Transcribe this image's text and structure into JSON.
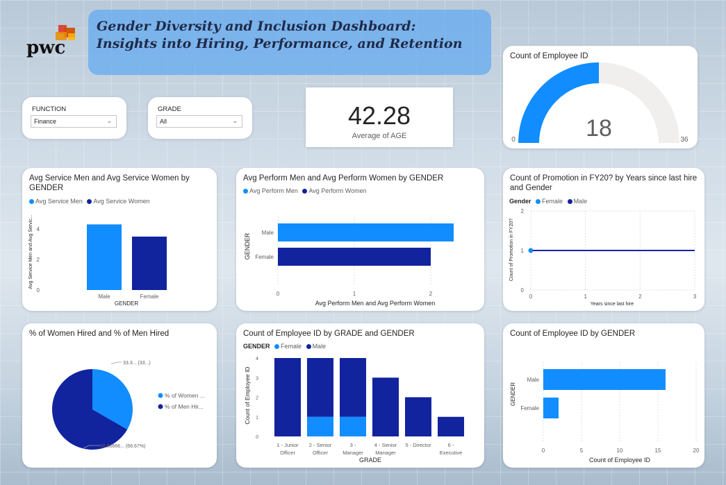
{
  "header": {
    "logo_text": "pwc",
    "title": "Gender Diversity and Inclusion Dashboard: Insights into Hiring, Performance, and Retention"
  },
  "filters": {
    "function": {
      "label": "FUNCTION",
      "value": "Finance"
    },
    "grade": {
      "label": "GRADE",
      "value": "All"
    }
  },
  "kpi": {
    "value": "42.28",
    "label": "Average of AGE"
  },
  "colors": {
    "light": "#118DFF",
    "dark": "#12239E",
    "gauge_bg": "#F0EFED"
  },
  "chart_data": [
    {
      "id": "gauge",
      "type": "gauge",
      "title": "Count of Employee ID",
      "value": 18,
      "min": 0,
      "max": 36
    },
    {
      "id": "avg_service",
      "type": "bar",
      "title": "Avg Service Men and Avg Service Women by GENDER",
      "legend": [
        "Avg Service Men",
        "Avg Service Women"
      ],
      "categories": [
        "Male",
        "Female"
      ],
      "values": [
        4.3,
        3.5
      ],
      "xlabel": "GENDER",
      "ylabel": "Avg Service Men and Avg Servic...",
      "yticks": [
        "0",
        "2",
        "4"
      ],
      "ylim": [
        0,
        5
      ]
    },
    {
      "id": "avg_perform",
      "type": "bar",
      "title": "Avg Perform Men and Avg Perform Women by GENDER",
      "legend": [
        "Avg Perform Men",
        "Avg Perform Women"
      ],
      "categories": [
        "Male",
        "Female"
      ],
      "values": [
        2.3,
        2.0
      ],
      "xlabel": "Avg Perform Men and Avg Perform Women",
      "ylabel": "GENDER",
      "xticks": [
        "0",
        "1",
        "2"
      ],
      "xlim": [
        0,
        2.4
      ]
    },
    {
      "id": "promotion",
      "type": "line",
      "title": "Count of Promotion in FY20? by Years since last hire and Gender",
      "legend_title": "Gender",
      "legend": [
        "Female",
        "Male"
      ],
      "series": [
        {
          "name": "Female",
          "x": [
            0
          ],
          "y": [
            1
          ]
        },
        {
          "name": "Male",
          "x": [
            0,
            3
          ],
          "y": [
            1,
            1
          ]
        }
      ],
      "xlabel": "Years since last hire",
      "ylabel": "Count of Promotion in FY20?",
      "xticks": [
        "0",
        "1",
        "2",
        "3"
      ],
      "yticks": [
        "0",
        "1",
        "2"
      ],
      "xlim": [
        0,
        3
      ],
      "ylim": [
        0,
        2
      ]
    },
    {
      "id": "hired_pie",
      "type": "pie",
      "title": "% of Women Hired and % of Men Hired",
      "slices": [
        {
          "name": "% of Women ...",
          "value": 33.33,
          "label": "33.3... (33...)"
        },
        {
          "name": "% of Men Hir...",
          "value": 66.67,
          "label": "66.66666... (66.67%)"
        }
      ]
    },
    {
      "id": "grade_gender",
      "type": "bar",
      "stacked": true,
      "title": "Count of Employee ID by GRADE and GENDER",
      "legend_title": "GENDER",
      "legend": [
        "Female",
        "Male"
      ],
      "categories": [
        [
          "1 - Junior",
          "Officer"
        ],
        [
          "2 - Senior",
          "Officer"
        ],
        [
          "3 -",
          "Manager"
        ],
        [
          "4 - Senior",
          "Manager"
        ],
        [
          "5 - Director"
        ],
        [
          "6 -",
          "Executive"
        ]
      ],
      "series": [
        {
          "name": "Female",
          "values": [
            0,
            1,
            1,
            0,
            0,
            0
          ]
        },
        {
          "name": "Male",
          "values": [
            4,
            3,
            3,
            3,
            2,
            1
          ]
        }
      ],
      "xlabel": "GRADE",
      "ylabel": "Count of Employee ID",
      "yticks": [
        "0",
        "1",
        "2",
        "3",
        "4"
      ],
      "ylim": [
        0,
        4
      ]
    },
    {
      "id": "count_gender",
      "type": "bar",
      "title": "Count of Employee ID by GENDER",
      "categories": [
        "Male",
        "Female"
      ],
      "values": [
        16,
        2
      ],
      "xlabel": "Count of Employee ID",
      "ylabel": "GENDER",
      "xticks": [
        "0",
        "5",
        "10",
        "15",
        "20"
      ],
      "xlim": [
        0,
        20
      ]
    }
  ]
}
